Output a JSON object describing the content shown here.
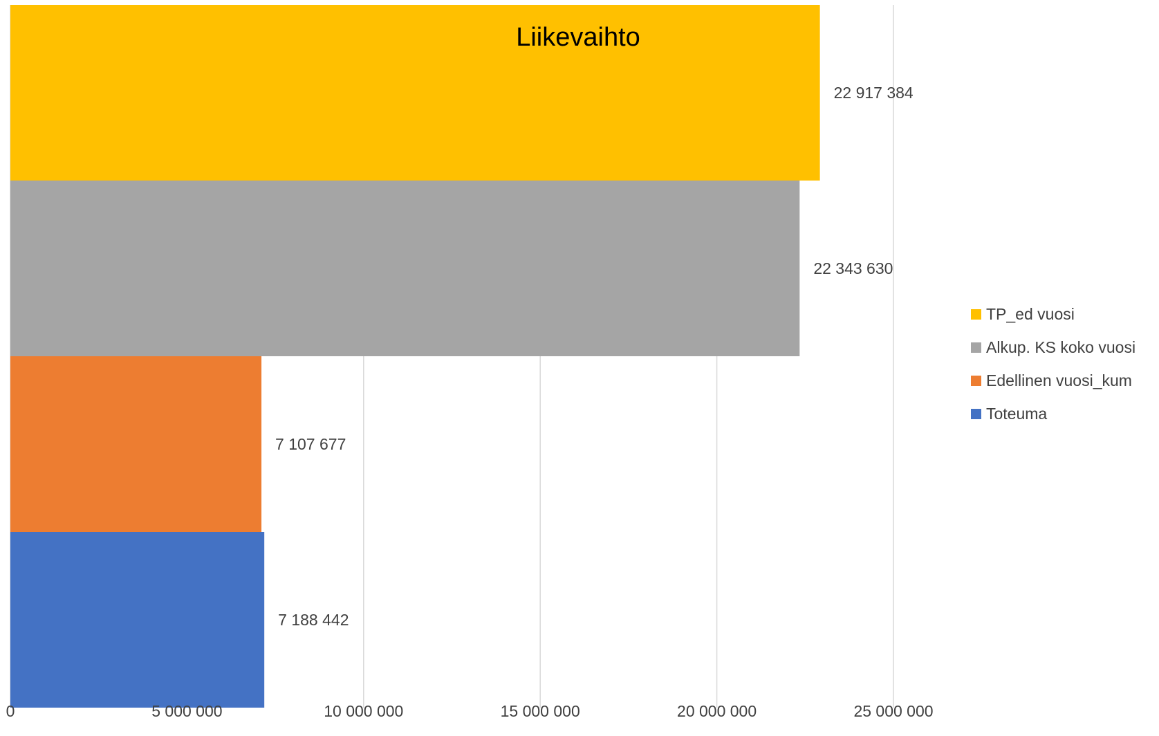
{
  "chart_data": {
    "type": "bar",
    "orientation": "horizontal",
    "title": "Liikevaihto",
    "xlim": [
      0,
      25000000
    ],
    "xticks": [
      0,
      5000000,
      10000000,
      15000000,
      20000000,
      25000000
    ],
    "xtick_labels": [
      "0",
      "5 000 000",
      "10 000 000",
      "15 000 000",
      "20 000 000",
      "25 000 000"
    ],
    "grid": "vertical",
    "legend_position": "right",
    "series": [
      {
        "name": "TP_ed vuosi",
        "value": 22917384,
        "label": "22 917 384",
        "color": "#FFC000"
      },
      {
        "name": "Alkup. KS koko vuosi",
        "value": 22343630,
        "label": "22 343 630",
        "color": "#A5A5A5"
      },
      {
        "name": "Edellinen vuosi_kum",
        "value": 7107677,
        "label": "7 107 677",
        "color": "#ED7D31"
      },
      {
        "name": "Toteuma",
        "value": 7188442,
        "label": "7 188 442",
        "color": "#4472C4"
      }
    ]
  }
}
